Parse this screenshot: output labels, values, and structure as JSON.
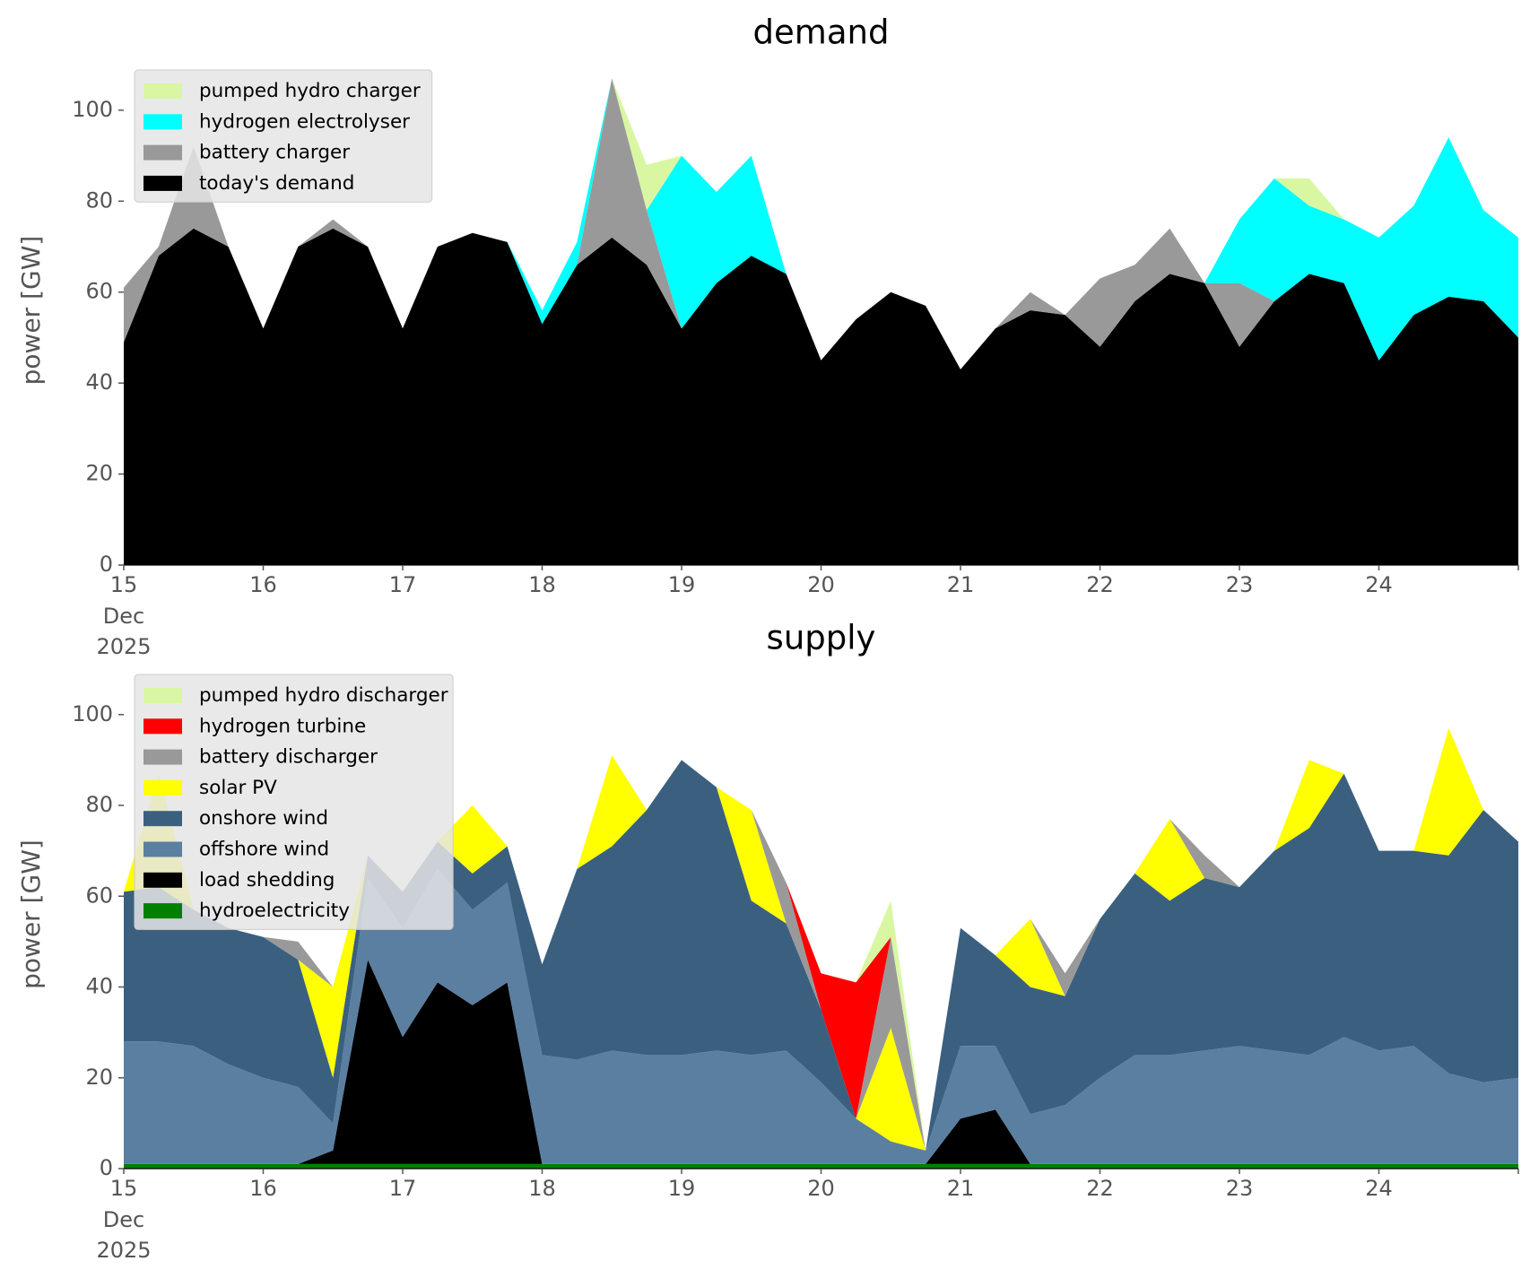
{
  "chart_data": [
    {
      "type": "area",
      "stacked": true,
      "title": "demand",
      "xlabel": "",
      "ylabel": "power [GW]",
      "ylim": [
        0,
        112
      ],
      "xlim": [
        "2025-12-15",
        "2025-12-25"
      ],
      "x_tick_labels": [
        "15",
        "16",
        "17",
        "18",
        "19",
        "20",
        "21",
        "22",
        "23",
        "24"
      ],
      "x_tick_sublabels": [
        "Dec",
        "2025"
      ],
      "y_tick_labels": [
        "0",
        "20",
        "40",
        "60",
        "80",
        "100"
      ],
      "grid": false,
      "legend_position": "upper-left",
      "x": [
        "2025-12-15",
        "2025-12-15T06",
        "2025-12-15T12",
        "2025-12-15T18",
        "2025-12-16",
        "2025-12-16T06",
        "2025-12-16T12",
        "2025-12-16T18",
        "2025-12-17",
        "2025-12-17T06",
        "2025-12-17T12",
        "2025-12-17T18",
        "2025-12-18",
        "2025-12-18T06",
        "2025-12-18T12",
        "2025-12-18T18",
        "2025-12-19",
        "2025-12-19T06",
        "2025-12-19T12",
        "2025-12-19T18",
        "2025-12-20",
        "2025-12-20T06",
        "2025-12-20T12",
        "2025-12-20T18",
        "2025-12-21",
        "2025-12-21T06",
        "2025-12-21T12",
        "2025-12-21T18",
        "2025-12-22",
        "2025-12-22T06",
        "2025-12-22T12",
        "2025-12-22T18",
        "2025-12-23",
        "2025-12-23T06",
        "2025-12-23T12",
        "2025-12-23T18",
        "2025-12-24",
        "2025-12-24T06",
        "2025-12-24T12",
        "2025-12-24T18",
        "2025-12-25"
      ],
      "series": [
        {
          "name": "today's demand",
          "color": "#000000",
          "values": [
            49,
            68,
            74,
            70,
            52,
            70,
            74,
            70,
            52,
            70,
            73,
            71,
            53,
            66,
            72,
            66,
            52,
            62,
            68,
            64,
            45,
            54,
            60,
            57,
            43,
            52,
            56,
            55,
            48,
            58,
            64,
            62,
            48,
            58,
            64,
            62,
            45,
            55,
            59,
            58,
            50
          ]
        },
        {
          "name": "battery charger",
          "color": "#999999",
          "values": [
            12,
            2,
            18,
            0,
            0,
            0,
            2,
            0,
            0,
            0,
            0,
            0,
            0,
            0,
            35,
            12,
            0,
            0,
            0,
            0,
            0,
            0,
            0,
            0,
            0,
            0,
            4,
            0,
            15,
            8,
            10,
            0,
            14,
            0,
            0,
            0,
            0,
            0,
            0,
            0,
            0
          ]
        },
        {
          "name": "hydrogen electrolyser",
          "color": "#00ffff",
          "values": [
            0,
            0,
            0,
            0,
            0,
            0,
            0,
            0,
            0,
            0,
            0,
            0,
            3,
            5,
            0,
            0,
            38,
            20,
            22,
            0,
            0,
            0,
            0,
            0,
            0,
            0,
            0,
            0,
            0,
            0,
            0,
            0,
            14,
            27,
            15,
            14,
            27,
            24,
            35,
            20,
            22
          ]
        },
        {
          "name": "pumped hydro charger",
          "color": "#d9f7a3",
          "values": [
            0,
            0,
            0,
            0,
            0,
            0,
            0,
            0,
            0,
            0,
            0,
            0,
            0,
            0,
            0,
            10,
            0,
            0,
            0,
            0,
            0,
            0,
            0,
            0,
            0,
            0,
            0,
            0,
            0,
            0,
            0,
            0,
            0,
            0,
            6,
            0,
            0,
            0,
            0,
            0,
            0
          ]
        }
      ]
    },
    {
      "type": "area",
      "stacked": true,
      "title": "supply",
      "xlabel": "",
      "ylabel": "power [GW]",
      "ylim": [
        0,
        112
      ],
      "xlim": [
        "2025-12-15",
        "2025-12-25"
      ],
      "x_tick_labels": [
        "15",
        "16",
        "17",
        "18",
        "19",
        "20",
        "21",
        "22",
        "23",
        "24"
      ],
      "x_tick_sublabels": [
        "Dec",
        "2025"
      ],
      "y_tick_labels": [
        "0",
        "20",
        "40",
        "60",
        "80",
        "100"
      ],
      "grid": false,
      "legend_position": "upper-left",
      "x": [
        "2025-12-15",
        "2025-12-15T06",
        "2025-12-15T12",
        "2025-12-15T18",
        "2025-12-16",
        "2025-12-16T06",
        "2025-12-16T12",
        "2025-12-16T18",
        "2025-12-17",
        "2025-12-17T06",
        "2025-12-17T12",
        "2025-12-17T18",
        "2025-12-18",
        "2025-12-18T06",
        "2025-12-18T12",
        "2025-12-18T18",
        "2025-12-19",
        "2025-12-19T06",
        "2025-12-19T12",
        "2025-12-19T18",
        "2025-12-20",
        "2025-12-20T06",
        "2025-12-20T12",
        "2025-12-20T18",
        "2025-12-21",
        "2025-12-21T06",
        "2025-12-21T12",
        "2025-12-21T18",
        "2025-12-22",
        "2025-12-22T06",
        "2025-12-22T12",
        "2025-12-22T18",
        "2025-12-23",
        "2025-12-23T06",
        "2025-12-23T12",
        "2025-12-23T18",
        "2025-12-24",
        "2025-12-24T06",
        "2025-12-24T12",
        "2025-12-24T18",
        "2025-12-25"
      ],
      "series": [
        {
          "name": "hydroelectricity",
          "color": "#008000",
          "values": [
            1,
            1,
            1,
            1,
            1,
            1,
            1,
            1,
            1,
            1,
            1,
            1,
            1,
            1,
            1,
            1,
            1,
            1,
            1,
            1,
            1,
            1,
            1,
            1,
            1,
            1,
            1,
            1,
            1,
            1,
            1,
            1,
            1,
            1,
            1,
            1,
            1,
            1,
            1,
            1,
            1
          ]
        },
        {
          "name": "load shedding",
          "color": "#000000",
          "values": [
            0,
            0,
            0,
            0,
            0,
            0,
            3,
            45,
            28,
            40,
            35,
            40,
            0,
            0,
            0,
            0,
            0,
            0,
            0,
            0,
            0,
            0,
            0,
            0,
            10,
            12,
            0,
            0,
            0,
            0,
            0,
            0,
            0,
            0,
            0,
            0,
            0,
            0,
            0,
            0,
            0
          ]
        },
        {
          "name": "offshore wind",
          "color": "#5b7fa1",
          "values": [
            27,
            27,
            26,
            22,
            19,
            17,
            6,
            18,
            24,
            25,
            21,
            22,
            24,
            23,
            25,
            24,
            24,
            25,
            24,
            25,
            18,
            10,
            5,
            3,
            16,
            14,
            11,
            13,
            19,
            24,
            24,
            25,
            26,
            25,
            24,
            28,
            25,
            26,
            20,
            18,
            19
          ]
        },
        {
          "name": "onshore wind",
          "color": "#3b607f",
          "values": [
            33,
            34,
            30,
            30,
            31,
            28,
            10,
            5,
            8,
            6,
            8,
            8,
            20,
            42,
            45,
            54,
            65,
            58,
            34,
            28,
            16,
            0,
            0,
            0,
            26,
            20,
            28,
            24,
            35,
            40,
            34,
            38,
            35,
            44,
            50,
            58,
            44,
            43,
            48,
            60,
            52
          ]
        },
        {
          "name": "solar PV",
          "color": "#ffff00",
          "values": [
            0,
            25,
            0,
            0,
            0,
            0,
            20,
            0,
            0,
            0,
            15,
            0,
            0,
            0,
            20,
            0,
            0,
            0,
            20,
            0,
            0,
            0,
            25,
            0,
            0,
            0,
            15,
            0,
            0,
            0,
            18,
            0,
            0,
            0,
            15,
            0,
            0,
            0,
            28,
            0,
            0
          ]
        },
        {
          "name": "battery discharger",
          "color": "#999999",
          "values": [
            0,
            0,
            0,
            0,
            0,
            4,
            0,
            0,
            0,
            0,
            0,
            0,
            0,
            0,
            0,
            0,
            0,
            0,
            0,
            9,
            0,
            0,
            20,
            0,
            0,
            0,
            0,
            5,
            0,
            0,
            0,
            5,
            0,
            0,
            0,
            0,
            0,
            0,
            0,
            0,
            0
          ]
        },
        {
          "name": "hydrogen turbine",
          "color": "#ff0000",
          "values": [
            0,
            0,
            0,
            0,
            0,
            0,
            0,
            0,
            0,
            0,
            0,
            0,
            0,
            0,
            0,
            0,
            0,
            0,
            0,
            0,
            8,
            30,
            0,
            0,
            0,
            0,
            0,
            0,
            0,
            0,
            0,
            0,
            0,
            0,
            0,
            0,
            0,
            0,
            0,
            0,
            0
          ]
        },
        {
          "name": "pumped hydro discharger",
          "color": "#d9f7a3",
          "values": [
            0,
            0,
            0,
            0,
            0,
            0,
            0,
            0,
            0,
            0,
            0,
            0,
            0,
            0,
            0,
            0,
            0,
            0,
            0,
            0,
            0,
            0,
            8,
            0,
            0,
            0,
            0,
            0,
            0,
            0,
            0,
            0,
            0,
            0,
            0,
            0,
            0,
            0,
            0,
            0,
            0
          ]
        }
      ]
    }
  ]
}
